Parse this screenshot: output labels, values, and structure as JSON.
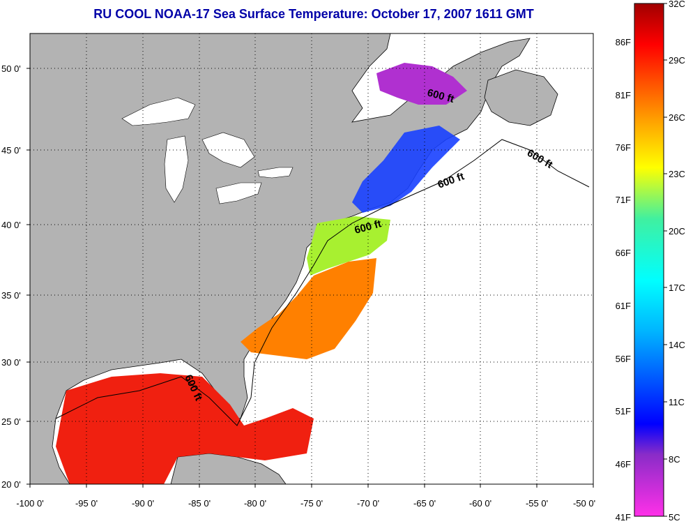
{
  "title": "RU COOL  NOAA-17  Sea Surface Temperature:  October 17, 2007 1611 GMT",
  "colors": {
    "title": "#0000a8",
    "land": "#b3b3b3",
    "no_data": "#ffffff",
    "grid": "#000000"
  },
  "axes": {
    "lon_ticks": [
      "-100 0'",
      "-95 0'",
      "-90 0'",
      "-85 0'",
      "-80 0'",
      "-75 0'",
      "-70 0'",
      "-65 0'",
      "-60 0'",
      "-55 0'",
      "-50 0'"
    ],
    "lat_ticks": [
      "20 0'",
      "25 0'",
      "30 0'",
      "35 0'",
      "40 0'",
      "45 0'",
      "50 0'"
    ]
  },
  "isobath_label": "600 ft",
  "colorbar": {
    "celsius": [
      "5C",
      "8C",
      "11C",
      "14C",
      "17C",
      "20C",
      "23C",
      "26C",
      "29C",
      "32C"
    ],
    "fahrenheit": [
      "41F",
      "46F",
      "51F",
      "56F",
      "61F",
      "66F",
      "71F",
      "76F",
      "81F",
      "86F"
    ]
  }
}
